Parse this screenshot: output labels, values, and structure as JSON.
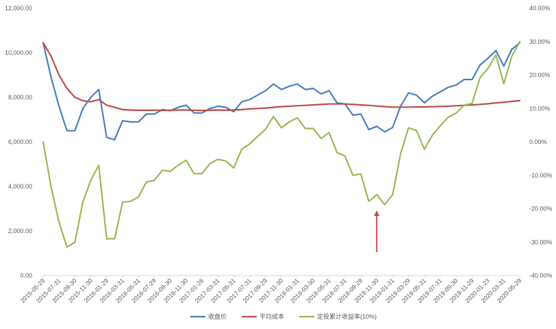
{
  "chart_data": {
    "type": "line",
    "title": "",
    "xlabel": "",
    "ylabel": "",
    "y_left": {
      "range": [
        0,
        12000
      ],
      "tick_labels": [
        "0.00",
        "2,000.00",
        "4,000.00",
        "6,000.00",
        "8,000.00",
        "10,000.00",
        "12,000.00"
      ]
    },
    "y_right": {
      "range": [
        -40,
        40
      ],
      "tick_labels": [
        "-40.00%",
        "-30.00%",
        "-20.00%",
        "-10.00%",
        "0.00%",
        "10.00%",
        "20.00%",
        "30.00%",
        "40.00%"
      ]
    },
    "x": [
      "2015-05-29",
      "2015-06-30",
      "2015-07-31",
      "2015-08-31",
      "2015-09-30",
      "2015-10-30",
      "2015-11-30",
      "2015-12-31",
      "2016-01-29",
      "2016-02-29",
      "2016-03-31",
      "2016-04-29",
      "2016-05-31",
      "2016-06-30",
      "2016-07-29",
      "2016-08-31",
      "2016-09-30",
      "2016-10-31",
      "2016-11-30",
      "2016-12-30",
      "2017-01-26",
      "2017-02-28",
      "2017-03-31",
      "2017-04-28",
      "2017-05-31",
      "2017-06-30",
      "2017-07-31",
      "2017-08-31",
      "2017-09-29",
      "2017-10-31",
      "2017-11-30",
      "2017-12-29",
      "2018-01-31",
      "2018-02-28",
      "2018-03-30",
      "2018-04-27",
      "2018-05-31",
      "2018-06-29",
      "2018-07-31",
      "2018-08-31",
      "2018-09-28",
      "2018-10-31",
      "2018-11-30",
      "2018-12-28",
      "2019-01-31",
      "2019-02-28",
      "2019-03-29",
      "2019-04-30",
      "2019-05-31",
      "2019-06-28",
      "2019-07-31",
      "2019-08-30",
      "2019-09-30",
      "2019-10-31",
      "2019-11-29",
      "2019-12-31",
      "2020-01-23",
      "2020-02-28",
      "2020-03-31",
      "2020-04-30",
      "2020-05-29"
    ],
    "x_tick_labels": [
      "2015-05-29",
      "2015-07-31",
      "2015-09-30",
      "2015-11-30",
      "2016-01-29",
      "2016-03-31",
      "2016-05-31",
      "2016-07-29",
      "2016-09-30",
      "2016-11-30",
      "2017-01-26",
      "2017-03-31",
      "2017-05-31",
      "2017-07-31",
      "2017-09-29",
      "2017-11-30",
      "2018-01-31",
      "2018-03-30",
      "2018-05-31",
      "2018-07-31",
      "2018-09-28",
      "2018-11-30",
      "2019-01-31",
      "2019-03-29",
      "2019-05-31",
      "2019-07-31",
      "2019-09-30",
      "2019-11-29",
      "2020-01-23",
      "2020-03-31",
      "2020-05-29"
    ],
    "series": [
      {
        "name": "收盘价",
        "axis": "left",
        "color": "#4a7ebb",
        "values": [
          10450,
          8900,
          7600,
          6500,
          6500,
          7500,
          8000,
          8350,
          6200,
          6100,
          6950,
          6900,
          6900,
          7250,
          7250,
          7450,
          7400,
          7550,
          7650,
          7300,
          7300,
          7500,
          7600,
          7550,
          7350,
          7800,
          7900,
          8100,
          8300,
          8600,
          8350,
          8500,
          8600,
          8350,
          8400,
          8150,
          8300,
          7750,
          7700,
          7200,
          7250,
          6550,
          6700,
          6450,
          6650,
          7600,
          8200,
          8100,
          7750,
          8050,
          8250,
          8450,
          8550,
          8800,
          8800,
          9450,
          9750,
          10100,
          9400,
          10150,
          10450
        ]
      },
      {
        "name": "平均成本",
        "axis": "left",
        "color": "#be4b48",
        "values": [
          10450,
          9850,
          9000,
          8400,
          8000,
          7850,
          7800,
          7900,
          7650,
          7550,
          7450,
          7430,
          7420,
          7420,
          7420,
          7420,
          7420,
          7430,
          7430,
          7420,
          7410,
          7420,
          7430,
          7420,
          7430,
          7450,
          7480,
          7500,
          7520,
          7550,
          7580,
          7600,
          7620,
          7640,
          7660,
          7680,
          7700,
          7700,
          7700,
          7680,
          7660,
          7640,
          7610,
          7580,
          7560,
          7560,
          7560,
          7570,
          7570,
          7580,
          7590,
          7600,
          7620,
          7640,
          7660,
          7680,
          7710,
          7750,
          7780,
          7820,
          7850
        ]
      },
      {
        "name": "定投累计收益率(10%)",
        "axis": "right",
        "color": "#98b954",
        "values": [
          0,
          -13.5,
          -24,
          -31.5,
          -30,
          -18,
          -11.5,
          -7,
          -29,
          -29,
          -18,
          -17.8,
          -16.5,
          -12,
          -11.5,
          -8.5,
          -8.8,
          -7,
          -5.5,
          -9.5,
          -9.5,
          -6.5,
          -5.2,
          -5.7,
          -7.8,
          -2.2,
          -0.6,
          1.6,
          3.8,
          7.6,
          4.2,
          6,
          7.2,
          4,
          4,
          1,
          2.8,
          -3.2,
          -4.2,
          -10,
          -9.6,
          -17.8,
          -15.8,
          -18.8,
          -15.8,
          -3.6,
          4.2,
          3.4,
          -2.2,
          2,
          4.8,
          7.4,
          8.6,
          11,
          11.5,
          19.2,
          22,
          26,
          17.4,
          25.6,
          30
        ]
      }
    ],
    "annotation": {
      "type": "arrow",
      "color": "#c0504d",
      "x_index": 42,
      "from_y_right": -33,
      "to_y_right": -20.5
    },
    "grid": "none",
    "legend_position": "bottom"
  }
}
